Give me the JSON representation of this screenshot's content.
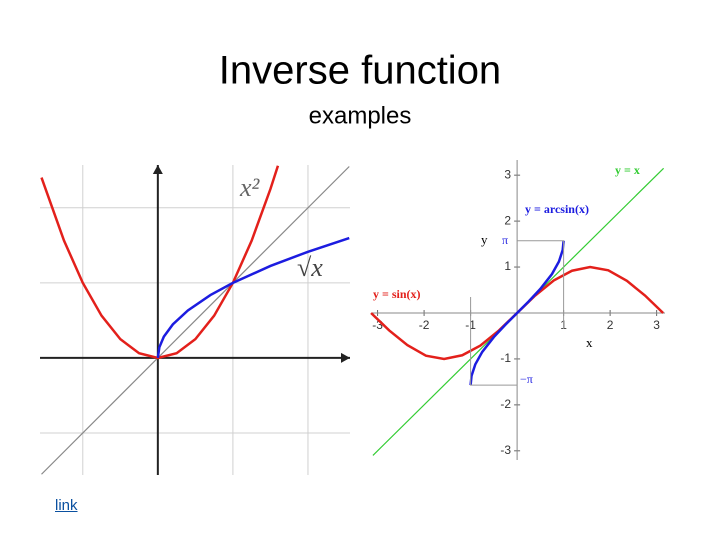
{
  "header": {
    "title": "Inverse function",
    "subtitle": "examples"
  },
  "chart_data": [
    {
      "type": "line",
      "grid": true,
      "tick_labels": false,
      "axis_arrows": true,
      "xlim": [
        -1.57,
        2.56
      ],
      "ylim": [
        -1.56,
        2.57
      ],
      "xticks": [
        -1,
        0,
        1,
        2
      ],
      "yticks": [
        -1,
        0,
        1,
        2
      ],
      "annotations": [
        "x²",
        "√x"
      ],
      "series": [
        {
          "color": "#888888",
          "x": [
            -1.55,
            2.55
          ],
          "values": [
            -1.55,
            2.55
          ]
        },
        {
          "color": "#e3201b",
          "x": [
            -1.55,
            -1.25,
            -1,
            -0.75,
            -0.5,
            -0.25,
            0,
            0.25,
            0.5,
            0.75,
            1,
            1.25,
            1.5,
            1.6
          ],
          "values": [
            2.4025,
            1.5625,
            1,
            0.5625,
            0.25,
            0.0625,
            0,
            0.0625,
            0.25,
            0.5625,
            1,
            1.5625,
            2.25,
            2.56
          ]
        },
        {
          "color": "#1c1ce0",
          "x": [
            0,
            0.02,
            0.08,
            0.2,
            0.4,
            0.7,
            1,
            1.5,
            2,
            2.55
          ],
          "values": [
            0,
            0.141,
            0.283,
            0.447,
            0.632,
            0.837,
            1,
            1.225,
            1.414,
            1.597
          ]
        }
      ]
    },
    {
      "type": "line",
      "grid": false,
      "tick_labels": true,
      "axis_arrows": false,
      "xlim": [
        -3.12,
        3.18
      ],
      "ylim": [
        -3.2,
        3.33
      ],
      "xticks": [
        -3,
        -2,
        -1,
        1,
        2,
        3
      ],
      "yticks": [
        3,
        2,
        1,
        -1,
        -2,
        -3
      ],
      "xlabel": "x",
      "ylabel": "y",
      "annotations": [
        "y = x",
        "y = arcsin(x)",
        "y = sin(x)",
        "π",
        "−π"
      ],
      "series": [
        {
          "color": "#33cc33",
          "x": [
            -3.1,
            3.15
          ],
          "values": [
            -3.1,
            3.15
          ]
        },
        {
          "color": "#e3201b",
          "x": [
            -3.14,
            -2.75,
            -2.36,
            -1.96,
            -1.57,
            -1.18,
            -0.79,
            -0.39,
            0,
            0.39,
            0.79,
            1.18,
            1.57,
            1.96,
            2.36,
            2.75,
            3.14
          ],
          "values": [
            0,
            -0.38,
            -0.7,
            -0.93,
            -1,
            -0.92,
            -0.71,
            -0.38,
            0,
            0.38,
            0.71,
            0.92,
            1,
            0.93,
            0.7,
            0.38,
            0
          ]
        },
        {
          "color": "#1c1ce0",
          "x": [
            -1,
            -0.98,
            -0.9,
            -0.75,
            -0.5,
            -0.25,
            0,
            0.25,
            0.5,
            0.75,
            0.9,
            0.98,
            1
          ],
          "values": [
            -1.571,
            -1.37,
            -1.12,
            -0.848,
            -0.524,
            -0.253,
            0,
            0.253,
            0.524,
            0.848,
            1.12,
            1.37,
            1.571
          ]
        }
      ]
    }
  ],
  "link": "link"
}
